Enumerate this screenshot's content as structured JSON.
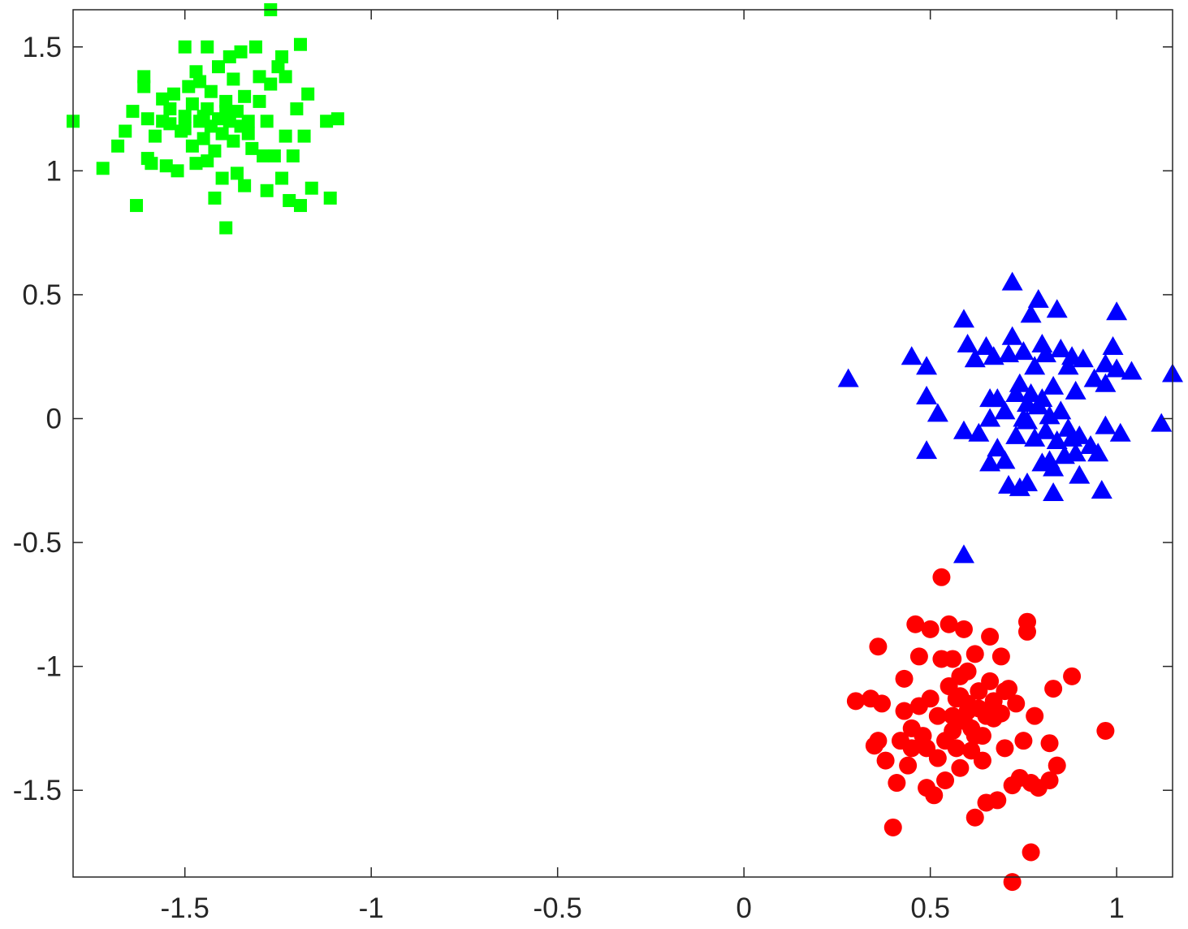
{
  "chart_data": {
    "type": "scatter",
    "title": "",
    "xlabel": "",
    "ylabel": "",
    "xlim": [
      -1.8,
      1.15
    ],
    "ylim": [
      -1.85,
      1.65
    ],
    "grid": false,
    "legend": "none",
    "x_ticks": [
      {
        "value": -1.5,
        "label": "-1.5"
      },
      {
        "value": -1,
        "label": "-1"
      },
      {
        "value": -0.5,
        "label": "-0.5"
      },
      {
        "value": 0,
        "label": "0"
      },
      {
        "value": 0.5,
        "label": "0.5"
      },
      {
        "value": 1,
        "label": "1"
      }
    ],
    "y_ticks": [
      {
        "value": 1.5,
        "label": "1.5"
      },
      {
        "value": 1,
        "label": "1"
      },
      {
        "value": 0.5,
        "label": "0.5"
      },
      {
        "value": 0,
        "label": "0"
      },
      {
        "value": -0.5,
        "label": "-0.5"
      },
      {
        "value": -1,
        "label": "-1"
      },
      {
        "value": -1.5,
        "label": "-1.5"
      }
    ],
    "series": [
      {
        "marker": "square",
        "color": "#00ff00",
        "points": [
          [
            -1.8,
            1.2
          ],
          [
            -1.72,
            1.01
          ],
          [
            -1.68,
            1.1
          ],
          [
            -1.66,
            1.16
          ],
          [
            -1.64,
            1.24
          ],
          [
            -1.63,
            0.86
          ],
          [
            -1.61,
            1.34
          ],
          [
            -1.61,
            1.38
          ],
          [
            -1.6,
            1.21
          ],
          [
            -1.6,
            1.05
          ],
          [
            -1.59,
            1.03
          ],
          [
            -1.58,
            1.14
          ],
          [
            -1.56,
            1.29
          ],
          [
            -1.55,
            1.02
          ],
          [
            -1.54,
            1.19
          ],
          [
            -1.54,
            1.25
          ],
          [
            -1.53,
            1.31
          ],
          [
            -1.52,
            1.0
          ],
          [
            -1.51,
            1.16
          ],
          [
            -1.5,
            1.22
          ],
          [
            -1.5,
            1.5
          ],
          [
            -1.49,
            1.34
          ],
          [
            -1.48,
            1.1
          ],
          [
            -1.48,
            1.27
          ],
          [
            -1.47,
            1.03
          ],
          [
            -1.47,
            1.4
          ],
          [
            -1.46,
            1.2
          ],
          [
            -1.46,
            1.36
          ],
          [
            -1.45,
            1.13
          ],
          [
            -1.44,
            1.04
          ],
          [
            -1.44,
            1.25
          ],
          [
            -1.44,
            1.5
          ],
          [
            -1.43,
            1.18
          ],
          [
            -1.43,
            1.32
          ],
          [
            -1.42,
            0.89
          ],
          [
            -1.42,
            1.08
          ],
          [
            -1.41,
            1.21
          ],
          [
            -1.41,
            1.42
          ],
          [
            -1.4,
            0.97
          ],
          [
            -1.4,
            1.15
          ],
          [
            -1.39,
            1.28
          ],
          [
            -1.39,
            0.77
          ],
          [
            -1.38,
            1.46
          ],
          [
            -1.38,
            1.2
          ],
          [
            -1.37,
            1.12
          ],
          [
            -1.37,
            1.37
          ],
          [
            -1.36,
            0.99
          ],
          [
            -1.36,
            1.24
          ],
          [
            -1.35,
            1.18
          ],
          [
            -1.35,
            1.48
          ],
          [
            -1.34,
            0.94
          ],
          [
            -1.34,
            1.3
          ],
          [
            -1.33,
            1.2
          ],
          [
            -1.32,
            1.09
          ],
          [
            -1.31,
            1.5
          ],
          [
            -1.3,
            1.28
          ],
          [
            -1.3,
            1.38
          ],
          [
            -1.29,
            1.06
          ],
          [
            -1.28,
            0.92
          ],
          [
            -1.28,
            1.2
          ],
          [
            -1.27,
            1.65
          ],
          [
            -1.27,
            1.35
          ],
          [
            -1.26,
            1.06
          ],
          [
            -1.25,
            1.42
          ],
          [
            -1.24,
            0.97
          ],
          [
            -1.24,
            1.46
          ],
          [
            -1.23,
            1.14
          ],
          [
            -1.23,
            1.38
          ],
          [
            -1.22,
            0.88
          ],
          [
            -1.21,
            1.06
          ],
          [
            -1.2,
            1.25
          ],
          [
            -1.19,
            1.51
          ],
          [
            -1.19,
            0.86
          ],
          [
            -1.18,
            1.14
          ],
          [
            -1.17,
            1.31
          ],
          [
            -1.16,
            0.93
          ],
          [
            -1.12,
            1.2
          ],
          [
            -1.11,
            0.89
          ],
          [
            -1.09,
            1.21
          ],
          [
            -1.45,
            1.22
          ],
          [
            -1.39,
            1.24
          ],
          [
            -1.5,
            1.17
          ],
          [
            -1.33,
            1.15
          ],
          [
            -1.56,
            1.2
          ]
        ]
      },
      {
        "marker": "triangle",
        "color": "#0000ff",
        "points": [
          [
            0.28,
            0.16
          ],
          [
            0.45,
            0.25
          ],
          [
            0.49,
            0.21
          ],
          [
            0.49,
            0.09
          ],
          [
            0.49,
            -0.13
          ],
          [
            0.52,
            0.02
          ],
          [
            0.59,
            0.4
          ],
          [
            0.59,
            -0.55
          ],
          [
            0.59,
            -0.05
          ],
          [
            0.62,
            0.24
          ],
          [
            0.63,
            -0.06
          ],
          [
            0.65,
            0.29
          ],
          [
            0.66,
            0.08
          ],
          [
            0.66,
            -0.18
          ],
          [
            0.66,
            0.0
          ],
          [
            0.67,
            0.25
          ],
          [
            0.68,
            0.08
          ],
          [
            0.7,
            -0.17
          ],
          [
            0.7,
            0.03
          ],
          [
            0.71,
            -0.27
          ],
          [
            0.71,
            0.26
          ],
          [
            0.72,
            0.55
          ],
          [
            0.72,
            0.33
          ],
          [
            0.73,
            0.1
          ],
          [
            0.73,
            -0.07
          ],
          [
            0.74,
            -0.28
          ],
          [
            0.74,
            0.14
          ],
          [
            0.75,
            0.0
          ],
          [
            0.75,
            0.27
          ],
          [
            0.76,
            -0.01
          ],
          [
            0.76,
            -0.26
          ],
          [
            0.77,
            0.42
          ],
          [
            0.77,
            0.1
          ],
          [
            0.78,
            0.21
          ],
          [
            0.78,
            -0.08
          ],
          [
            0.79,
            0.05
          ],
          [
            0.79,
            0.48
          ],
          [
            0.8,
            -0.18
          ],
          [
            0.8,
            0.08
          ],
          [
            0.8,
            0.3
          ],
          [
            0.81,
            -0.05
          ],
          [
            0.81,
            0.26
          ],
          [
            0.82,
            0.01
          ],
          [
            0.82,
            -0.17
          ],
          [
            0.83,
            -0.3
          ],
          [
            0.83,
            0.13
          ],
          [
            0.84,
            0.44
          ],
          [
            0.84,
            -0.09
          ],
          [
            0.85,
            0.03
          ],
          [
            0.85,
            0.28
          ],
          [
            0.86,
            -0.15
          ],
          [
            0.87,
            -0.04
          ],
          [
            0.87,
            0.21
          ],
          [
            0.88,
            0.25
          ],
          [
            0.88,
            -0.08
          ],
          [
            0.89,
            -0.14
          ],
          [
            0.9,
            -0.23
          ],
          [
            0.9,
            -0.07
          ],
          [
            0.91,
            0.24
          ],
          [
            0.94,
            0.16
          ],
          [
            0.95,
            -0.14
          ],
          [
            0.96,
            -0.29
          ],
          [
            0.97,
            0.22
          ],
          [
            0.97,
            0.14
          ],
          [
            0.97,
            -0.03
          ],
          [
            0.99,
            0.29
          ],
          [
            1.0,
            0.43
          ],
          [
            1.0,
            0.2
          ],
          [
            1.01,
            -0.06
          ],
          [
            1.04,
            0.19
          ],
          [
            1.12,
            -0.02
          ],
          [
            1.15,
            0.18
          ],
          [
            0.6,
            0.3
          ],
          [
            0.68,
            -0.12
          ],
          [
            0.76,
            0.06
          ],
          [
            0.83,
            -0.2
          ],
          [
            0.89,
            0.11
          ],
          [
            0.93,
            -0.11
          ]
        ]
      },
      {
        "marker": "circle",
        "color": "#ff0000",
        "points": [
          [
            0.3,
            -1.14
          ],
          [
            0.34,
            -1.13
          ],
          [
            0.35,
            -1.32
          ],
          [
            0.36,
            -0.92
          ],
          [
            0.36,
            -1.3
          ],
          [
            0.37,
            -1.15
          ],
          [
            0.38,
            -1.38
          ],
          [
            0.4,
            -1.65
          ],
          [
            0.41,
            -1.47
          ],
          [
            0.42,
            -1.3
          ],
          [
            0.43,
            -1.05
          ],
          [
            0.43,
            -1.18
          ],
          [
            0.44,
            -1.4
          ],
          [
            0.45,
            -1.25
          ],
          [
            0.45,
            -1.33
          ],
          [
            0.46,
            -0.83
          ],
          [
            0.47,
            -1.16
          ],
          [
            0.47,
            -0.96
          ],
          [
            0.48,
            -1.28
          ],
          [
            0.49,
            -1.49
          ],
          [
            0.49,
            -1.33
          ],
          [
            0.5,
            -0.85
          ],
          [
            0.5,
            -1.13
          ],
          [
            0.51,
            -1.52
          ],
          [
            0.52,
            -1.2
          ],
          [
            0.52,
            -1.37
          ],
          [
            0.53,
            -0.64
          ],
          [
            0.53,
            -0.97
          ],
          [
            0.54,
            -1.3
          ],
          [
            0.54,
            -1.46
          ],
          [
            0.55,
            -0.83
          ],
          [
            0.55,
            -1.08
          ],
          [
            0.56,
            -1.2
          ],
          [
            0.56,
            -0.97
          ],
          [
            0.57,
            -1.33
          ],
          [
            0.57,
            -1.13
          ],
          [
            0.58,
            -1.04
          ],
          [
            0.58,
            -1.41
          ],
          [
            0.59,
            -1.22
          ],
          [
            0.59,
            -0.85
          ],
          [
            0.6,
            -1.02
          ],
          [
            0.6,
            -1.15
          ],
          [
            0.61,
            -1.34
          ],
          [
            0.61,
            -1.25
          ],
          [
            0.62,
            -1.61
          ],
          [
            0.62,
            -0.95
          ],
          [
            0.63,
            -1.1
          ],
          [
            0.63,
            -1.17
          ],
          [
            0.64,
            -1.38
          ],
          [
            0.64,
            -1.28
          ],
          [
            0.65,
            -1.55
          ],
          [
            0.66,
            -1.06
          ],
          [
            0.66,
            -0.88
          ],
          [
            0.67,
            -1.21
          ],
          [
            0.67,
            -1.14
          ],
          [
            0.68,
            -1.54
          ],
          [
            0.69,
            -1.19
          ],
          [
            0.69,
            -0.96
          ],
          [
            0.7,
            -1.33
          ],
          [
            0.71,
            -1.09
          ],
          [
            0.72,
            -1.87
          ],
          [
            0.72,
            -1.48
          ],
          [
            0.73,
            -1.15
          ],
          [
            0.74,
            -1.45
          ],
          [
            0.75,
            -1.3
          ],
          [
            0.76,
            -0.82
          ],
          [
            0.76,
            -0.86
          ],
          [
            0.77,
            -1.47
          ],
          [
            0.77,
            -1.75
          ],
          [
            0.78,
            -1.2
          ],
          [
            0.79,
            -1.49
          ],
          [
            0.82,
            -1.46
          ],
          [
            0.82,
            -1.31
          ],
          [
            0.83,
            -1.09
          ],
          [
            0.84,
            -1.4
          ],
          [
            0.88,
            -1.04
          ],
          [
            0.97,
            -1.26
          ],
          [
            0.6,
            -1.18
          ],
          [
            0.65,
            -1.2
          ],
          [
            0.58,
            -1.12
          ],
          [
            0.62,
            -1.28
          ],
          [
            0.7,
            -1.1
          ],
          [
            0.56,
            -1.26
          ]
        ]
      }
    ]
  }
}
